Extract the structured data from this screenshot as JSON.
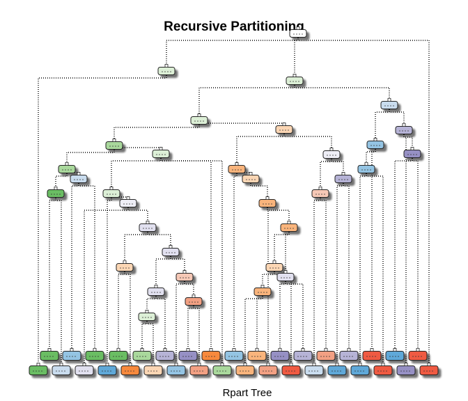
{
  "title": "Recursive Partitioning",
  "subtitle": "Rpart Tree",
  "palette": {
    "green_light": "#dcefd6",
    "green_mid": "#a9d89c",
    "green_dark": "#6bbd63",
    "blue_light": "#c9dcee",
    "blue_mid": "#94c4e3",
    "blue_dark": "#5ea8d8",
    "orange_light": "#fbd6b4",
    "orange_mid": "#f9b47c",
    "orange_dark": "#f7893d",
    "salmon_light": "#f6c8b6",
    "salmon_mid": "#f2a083",
    "red_dark": "#ef5a43",
    "purple_light": "#e1e0ef",
    "purple_mid": "#b6b3d6",
    "purple_dark": "#9690c4",
    "lavender": "#eeeef6",
    "white": "#ffffff",
    "edge": "#000000"
  }
}
